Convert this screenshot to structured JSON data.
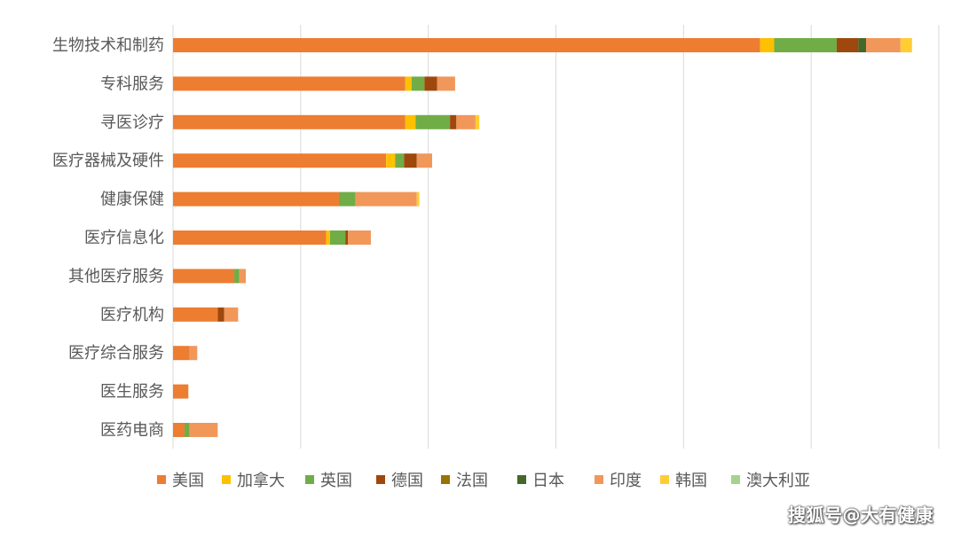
{
  "chart_data": {
    "type": "bar",
    "orientation": "horizontal",
    "stacked": true,
    "categories": [
      "生物技术和制药",
      "专科服务",
      "寻医诊疗",
      "医疗器械及硬件",
      "健康保健",
      "医疗信息化",
      "其他医疗服务",
      "医疗机构",
      "医疗综合服务",
      "医生服务",
      "医药电商"
    ],
    "series": [
      {
        "name": "美国",
        "color": "#ED7D31",
        "values": [
          460,
          182,
          182,
          167,
          130,
          120,
          48,
          35,
          13,
          12,
          9
        ]
      },
      {
        "name": "加拿大",
        "color": "#FFC000",
        "values": [
          11,
          5,
          8,
          7,
          0,
          3,
          0,
          0,
          0,
          0,
          0
        ]
      },
      {
        "name": "英国",
        "color": "#70AD47",
        "values": [
          49,
          10,
          27,
          7,
          13,
          12,
          4,
          0,
          0,
          0,
          4
        ]
      },
      {
        "name": "德国",
        "color": "#9E480E",
        "values": [
          17,
          10,
          5,
          10,
          0,
          2,
          0,
          5,
          0,
          0,
          0
        ]
      },
      {
        "name": "法国",
        "color": "#997300",
        "values": [
          0,
          0,
          0,
          0,
          0,
          0,
          0,
          0,
          0,
          0,
          0
        ]
      },
      {
        "name": "日本",
        "color": "#43682B",
        "values": [
          6,
          0,
          0,
          0,
          0,
          0,
          0,
          0,
          0,
          0,
          0
        ]
      },
      {
        "name": "印度",
        "color": "#F1975A",
        "values": [
          27,
          14,
          15,
          12,
          48,
          18,
          5,
          11,
          6,
          0,
          22
        ]
      },
      {
        "name": "韩国",
        "color": "#FFCD33",
        "values": [
          9,
          0,
          3,
          0,
          2,
          0,
          0,
          0,
          0,
          0,
          0
        ]
      },
      {
        "name": "澳大利亚",
        "color": "#A9D18E",
        "values": [
          0,
          0,
          0,
          0,
          0,
          0,
          0,
          0,
          0,
          0,
          0
        ]
      }
    ],
    "xlim": [
      0,
      600
    ],
    "grid": true,
    "legend_position": "bottom"
  },
  "watermark": "搜狐号@大有健康"
}
